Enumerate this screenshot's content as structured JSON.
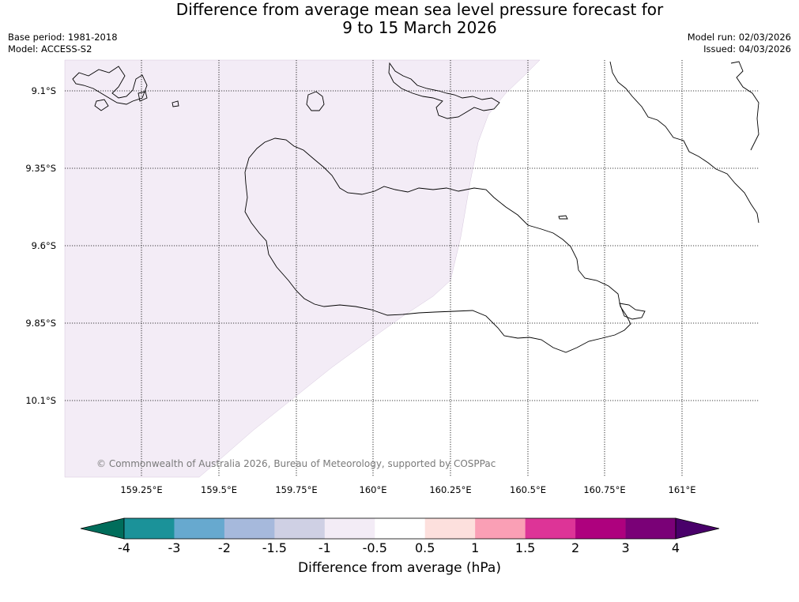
{
  "title_line1": "Difference from average mean sea level pressure forecast for",
  "title_line2": "9 to 15 March 2026",
  "base_period": "Base period: 1981-2018",
  "model": "Model: ACCESS-S2",
  "model_run": "Model run: 02/03/2026",
  "issued": "Issued: 04/03/2026",
  "copyright": "© Commonwealth of Australia 2026, Bureau of Meteorology, supported by COSPPac",
  "map": {
    "lat_labels": [
      "9.1°S",
      "9.35°S",
      "9.6°S",
      "9.85°S",
      "10.1°S"
    ],
    "lon_labels": [
      "159.25°E",
      "159.5°E",
      "159.75°E",
      "160°E",
      "160.25°E",
      "160.5°E",
      "160.75°E",
      "161°E"
    ],
    "anomaly_region_color": "#f3ecf6",
    "anomaly_region_range": "-1 to -0.5"
  },
  "colorbar": {
    "label": "Difference from average (hPa)",
    "ticks": [
      "-4",
      "-3",
      "-2",
      "-1.5",
      "-1",
      "-0.5",
      "0.5",
      "1",
      "1.5",
      "2",
      "3",
      "4"
    ],
    "colors": [
      "#006d5b",
      "#1b9299",
      "#67a9cf",
      "#a6b9dc",
      "#cfd0e4",
      "#f3ecf6",
      "#ffffff",
      "#fde0dd",
      "#fa9fb5",
      "#dd3497",
      "#ae017e",
      "#7a0177",
      "#49006a"
    ]
  }
}
